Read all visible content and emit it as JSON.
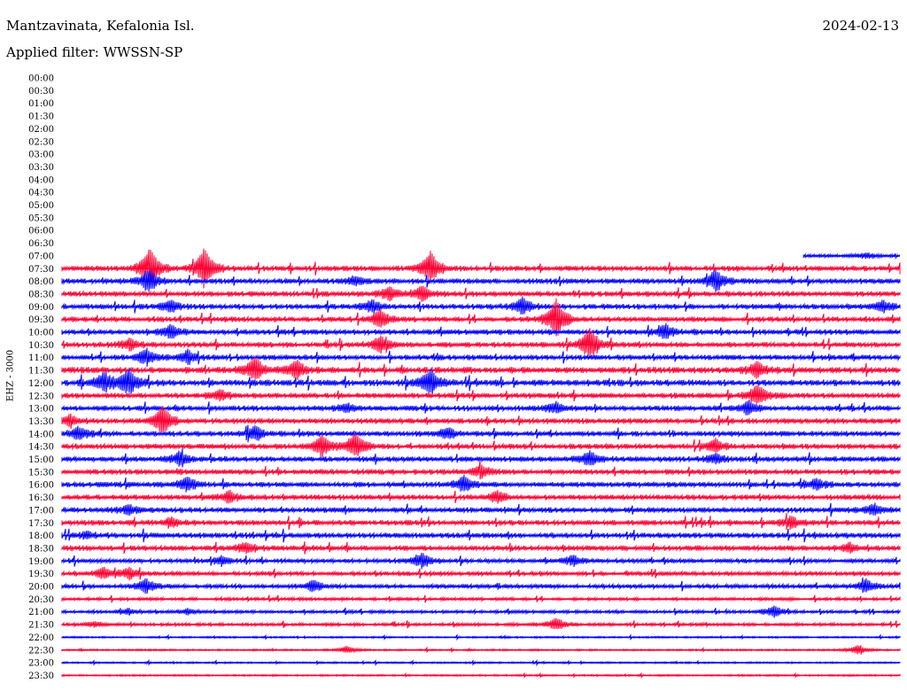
{
  "header": {
    "station": "Mantzavinata, Kefalonia Isl.",
    "date": "2024-02-13",
    "filter": "Applied filter: WWSSN-SP"
  },
  "chart_data": {
    "type": "line",
    "title": "Mantzavinata, Kefalonia Isl.",
    "subtitle": "Applied filter: WWSSN-SP",
    "date": "2024-02-13",
    "ylabel": "EHZ - 3000",
    "colors": {
      "even": "#0000ff",
      "odd": "#ff0033"
    },
    "rows": [
      "00:00",
      "00:30",
      "01:00",
      "01:30",
      "02:00",
      "02:30",
      "03:00",
      "03:30",
      "04:00",
      "04:30",
      "05:00",
      "05:30",
      "06:00",
      "06:30",
      "07:00",
      "07:30",
      "08:00",
      "08:30",
      "09:00",
      "09:30",
      "10:00",
      "10:30",
      "11:00",
      "11:30",
      "12:00",
      "12:30",
      "13:00",
      "13:30",
      "14:00",
      "14:30",
      "15:00",
      "15:30",
      "16:00",
      "16:30",
      "17:00",
      "17:30",
      "18:00",
      "18:30",
      "19:00",
      "19:30",
      "20:00",
      "20:30",
      "21:00",
      "21:30",
      "22:00",
      "22:30",
      "23:00",
      "23:30"
    ],
    "data_start": {
      "row": 14,
      "fraction": 0.885
    },
    "row_noise": [
      0,
      0,
      0,
      0,
      0,
      0,
      0,
      0,
      0,
      0,
      0,
      0,
      0,
      0,
      1.5,
      2.5,
      2.5,
      2.5,
      2.5,
      2.5,
      2.5,
      2.5,
      2.5,
      3,
      3,
      2.5,
      2.5,
      2.5,
      2.5,
      2.5,
      2.5,
      2.5,
      2.5,
      2.5,
      2.5,
      2.5,
      2.5,
      2.5,
      2,
      2,
      2,
      1.5,
      1.5,
      1.5,
      0.8,
      0.8,
      0.8,
      0.8
    ],
    "events": [
      {
        "row": 14,
        "at": 0.96,
        "amp": 3
      },
      {
        "row": 15,
        "at": 0.105,
        "amp": 22
      },
      {
        "row": 15,
        "at": 0.17,
        "amp": 22
      },
      {
        "row": 15,
        "at": 0.44,
        "amp": 18
      },
      {
        "row": 16,
        "at": 0.105,
        "amp": 12
      },
      {
        "row": 16,
        "at": 0.78,
        "amp": 12
      },
      {
        "row": 16,
        "at": 0.35,
        "amp": 5
      },
      {
        "row": 17,
        "at": 0.43,
        "amp": 8
      },
      {
        "row": 17,
        "at": 0.39,
        "amp": 7
      },
      {
        "row": 18,
        "at": 0.13,
        "amp": 6
      },
      {
        "row": 18,
        "at": 0.37,
        "amp": 7
      },
      {
        "row": 18,
        "at": 0.55,
        "amp": 9
      },
      {
        "row": 18,
        "at": 0.98,
        "amp": 6
      },
      {
        "row": 19,
        "at": 0.38,
        "amp": 10
      },
      {
        "row": 19,
        "at": 0.59,
        "amp": 22
      },
      {
        "row": 20,
        "at": 0.13,
        "amp": 7
      },
      {
        "row": 20,
        "at": 0.72,
        "amp": 8
      },
      {
        "row": 21,
        "at": 0.38,
        "amp": 9
      },
      {
        "row": 21,
        "at": 0.63,
        "amp": 18
      },
      {
        "row": 21,
        "at": 0.08,
        "amp": 6
      },
      {
        "row": 22,
        "at": 0.1,
        "amp": 8
      },
      {
        "row": 22,
        "at": 0.15,
        "amp": 7
      },
      {
        "row": 23,
        "at": 0.23,
        "amp": 14
      },
      {
        "row": 23,
        "at": 0.28,
        "amp": 10
      },
      {
        "row": 23,
        "at": 0.83,
        "amp": 8
      },
      {
        "row": 24,
        "at": 0.05,
        "amp": 10
      },
      {
        "row": 24,
        "at": 0.08,
        "amp": 14
      },
      {
        "row": 24,
        "at": 0.44,
        "amp": 14
      },
      {
        "row": 25,
        "at": 0.83,
        "amp": 12
      },
      {
        "row": 25,
        "at": 0.19,
        "amp": 6
      },
      {
        "row": 26,
        "at": 0.34,
        "amp": 5
      },
      {
        "row": 26,
        "at": 0.59,
        "amp": 6
      },
      {
        "row": 26,
        "at": 0.82,
        "amp": 8
      },
      {
        "row": 27,
        "at": 0.12,
        "amp": 16
      },
      {
        "row": 27,
        "at": 0.01,
        "amp": 6
      },
      {
        "row": 28,
        "at": 0.02,
        "amp": 7
      },
      {
        "row": 28,
        "at": 0.23,
        "amp": 8
      },
      {
        "row": 28,
        "at": 0.46,
        "amp": 6
      },
      {
        "row": 29,
        "at": 0.31,
        "amp": 12
      },
      {
        "row": 29,
        "at": 0.35,
        "amp": 14
      },
      {
        "row": 29,
        "at": 0.78,
        "amp": 7
      },
      {
        "row": 30,
        "at": 0.14,
        "amp": 7
      },
      {
        "row": 30,
        "at": 0.63,
        "amp": 8
      },
      {
        "row": 30,
        "at": 0.78,
        "amp": 6
      },
      {
        "row": 31,
        "at": 0.5,
        "amp": 7
      },
      {
        "row": 32,
        "at": 0.15,
        "amp": 8
      },
      {
        "row": 32,
        "at": 0.48,
        "amp": 9
      },
      {
        "row": 32,
        "at": 0.9,
        "amp": 6
      },
      {
        "row": 33,
        "at": 0.2,
        "amp": 6
      },
      {
        "row": 33,
        "at": 0.52,
        "amp": 6
      },
      {
        "row": 34,
        "at": 0.97,
        "amp": 6
      },
      {
        "row": 34,
        "at": 0.08,
        "amp": 5
      },
      {
        "row": 35,
        "at": 0.87,
        "amp": 6
      },
      {
        "row": 35,
        "at": 0.13,
        "amp": 5
      },
      {
        "row": 36,
        "at": 0.03,
        "amp": 4
      },
      {
        "row": 37,
        "at": 0.22,
        "amp": 6
      },
      {
        "row": 37,
        "at": 0.94,
        "amp": 5
      },
      {
        "row": 38,
        "at": 0.19,
        "amp": 5
      },
      {
        "row": 38,
        "at": 0.43,
        "amp": 8
      },
      {
        "row": 38,
        "at": 0.61,
        "amp": 6
      },
      {
        "row": 39,
        "at": 0.05,
        "amp": 6
      },
      {
        "row": 39,
        "at": 0.08,
        "amp": 6
      },
      {
        "row": 40,
        "at": 0.1,
        "amp": 8
      },
      {
        "row": 40,
        "at": 0.3,
        "amp": 6
      },
      {
        "row": 40,
        "at": 0.96,
        "amp": 7
      },
      {
        "row": 42,
        "at": 0.08,
        "amp": 3
      },
      {
        "row": 42,
        "at": 0.15,
        "amp": 3
      },
      {
        "row": 42,
        "at": 0.85,
        "amp": 6
      },
      {
        "row": 43,
        "at": 0.04,
        "amp": 3
      },
      {
        "row": 43,
        "at": 0.59,
        "amp": 7
      },
      {
        "row": 45,
        "at": 0.34,
        "amp": 4
      },
      {
        "row": 45,
        "at": 0.95,
        "amp": 5
      }
    ]
  }
}
